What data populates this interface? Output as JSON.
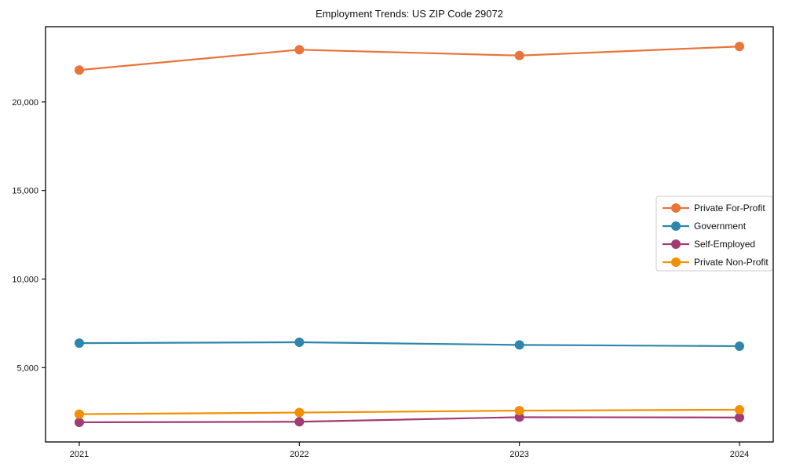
{
  "page": {
    "background": "#ffffff"
  },
  "chart_data": {
    "type": "line",
    "title": "Employment Trends: US ZIP Code 29072",
    "categories": [
      "2021",
      "2022",
      "2023",
      "2024"
    ],
    "series": [
      {
        "name": "Private For-Profit",
        "color": "#E8743B",
        "values": [
          21800,
          22950,
          22620,
          23130
        ]
      },
      {
        "name": "Government",
        "color": "#2E86AB",
        "values": [
          6380,
          6430,
          6280,
          6210
        ]
      },
      {
        "name": "Self-Employed",
        "color": "#A23B72",
        "values": [
          1910,
          1940,
          2200,
          2180
        ]
      },
      {
        "name": "Private Non-Profit",
        "color": "#F18F01",
        "values": [
          2370,
          2460,
          2570,
          2620
        ]
      }
    ],
    "xlabel": "",
    "ylabel": "",
    "ylim": [
      800,
      24250
    ],
    "yticks": [
      5000,
      10000,
      15000,
      20000
    ],
    "ytick_labels": [
      "5,000",
      "10,000",
      "15,000",
      "20,000"
    ],
    "grid": false,
    "legend_position": "center right",
    "marker": "circle",
    "axis_color": "#000000",
    "legend_border_color": "#cccccc"
  }
}
